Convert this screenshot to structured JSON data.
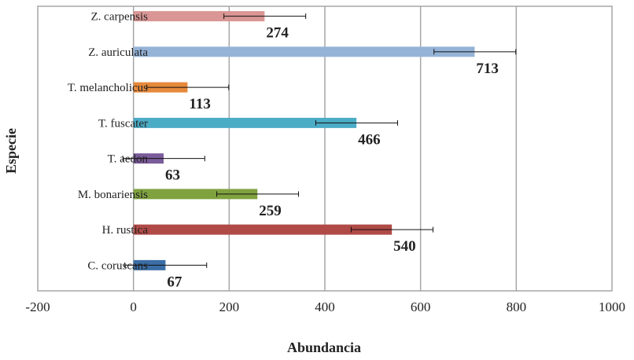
{
  "chart_data": {
    "type": "bar",
    "orientation": "horizontal",
    "title": "",
    "xlabel": "Abundancia",
    "ylabel": "Especie",
    "xlim": [
      -200,
      1000
    ],
    "x_ticks": [
      "-200",
      "0",
      "200",
      "400",
      "600",
      "800",
      "1000"
    ],
    "grid": "vertical",
    "legend": "none",
    "categories": [
      "Z. carpensis",
      "Z. auriculata",
      "T. melancholicus",
      "T. fuscater",
      "T. aedon",
      "M. bonariensis",
      "H. rustica",
      "C. coruscans"
    ],
    "values": [
      274,
      713,
      113,
      466,
      63,
      259,
      540,
      67
    ],
    "data_labels": [
      "274",
      "713",
      "113",
      "466",
      "63",
      "259",
      "540",
      "67"
    ],
    "errors": [
      [
        85,
        86
      ],
      [
        85,
        86
      ],
      [
        85,
        86
      ],
      [
        85,
        86
      ],
      [
        85,
        86
      ],
      [
        85,
        86
      ],
      [
        85,
        86
      ],
      [
        85,
        86
      ]
    ],
    "colors": [
      "#d99694",
      "#95b3d7",
      "#e6893b",
      "#4bacc6",
      "#7b5c9a",
      "#7fa23f",
      "#b04a47",
      "#3b6ea6"
    ]
  }
}
